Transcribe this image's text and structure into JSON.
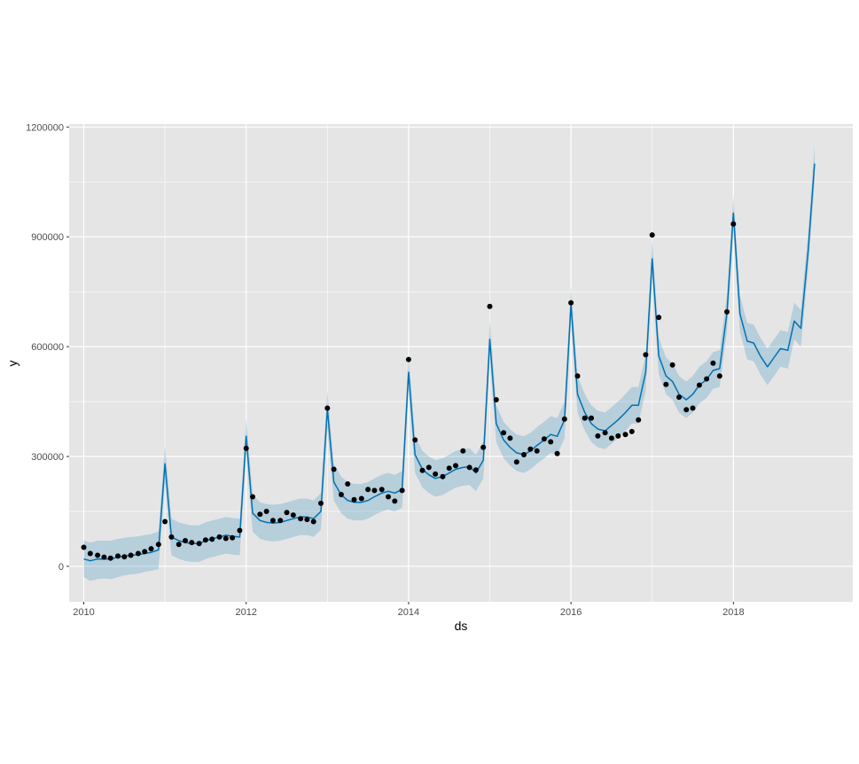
{
  "chart_data": {
    "type": "line",
    "title": "",
    "xlabel": "ds",
    "ylabel": "y",
    "xlim": [
      2009.82,
      2019.47
    ],
    "ylim": [
      -97000,
      1208000
    ],
    "x_ticks": [
      2010,
      2012,
      2014,
      2016,
      2018
    ],
    "x_tick_labels": [
      "2010",
      "2012",
      "2014",
      "2016",
      "2018"
    ],
    "y_ticks": [
      0,
      300000,
      600000,
      900000,
      1200000
    ],
    "y_tick_labels": [
      "0",
      "300000",
      "600000",
      "900000",
      "1200000"
    ],
    "grid": true,
    "legend": "none",
    "colors": {
      "panel_bg": "#e5e5e5",
      "grid": "#ffffff",
      "forecast_line": "#0072b2",
      "uncertainty_band": "#0072b2",
      "observed_points": "#000000"
    },
    "series": [
      {
        "kind": "observed_points",
        "x": [
          2010.0,
          2010.08,
          2010.17,
          2010.25,
          2010.33,
          2010.42,
          2010.5,
          2010.58,
          2010.67,
          2010.75,
          2010.83,
          2010.92,
          2011.0,
          2011.08,
          2011.17,
          2011.25,
          2011.33,
          2011.42,
          2011.5,
          2011.58,
          2011.67,
          2011.75,
          2011.83,
          2011.92,
          2012.0,
          2012.08,
          2012.17,
          2012.25,
          2012.33,
          2012.42,
          2012.5,
          2012.58,
          2012.67,
          2012.75,
          2012.83,
          2012.92,
          2013.0,
          2013.08,
          2013.17,
          2013.25,
          2013.33,
          2013.42,
          2013.5,
          2013.58,
          2013.67,
          2013.75,
          2013.83,
          2013.92,
          2014.0,
          2014.08,
          2014.17,
          2014.25,
          2014.33,
          2014.42,
          2014.5,
          2014.58,
          2014.67,
          2014.75,
          2014.83,
          2014.92,
          2015.0,
          2015.08,
          2015.17,
          2015.25,
          2015.33,
          2015.42,
          2015.5,
          2015.58,
          2015.67,
          2015.75,
          2015.83,
          2015.92,
          2016.0,
          2016.08,
          2016.17,
          2016.25,
          2016.33,
          2016.42,
          2016.5,
          2016.58,
          2016.67,
          2016.75,
          2016.83,
          2016.92,
          2017.0,
          2017.08,
          2017.17,
          2017.25,
          2017.33,
          2017.42,
          2017.5,
          2017.58,
          2017.67,
          2017.75,
          2017.83,
          2017.92,
          2018.0
        ],
        "y": [
          52000,
          35000,
          30000,
          25000,
          22000,
          28000,
          26000,
          30000,
          35000,
          40000,
          48000,
          60000,
          122000,
          80000,
          60000,
          70000,
          65000,
          62000,
          72000,
          74000,
          80000,
          76000,
          78000,
          98000,
          322000,
          190000,
          142000,
          150000,
          125000,
          125000,
          147000,
          140000,
          130000,
          128000,
          122000,
          172000,
          432000,
          265000,
          196000,
          225000,
          182000,
          185000,
          210000,
          207000,
          210000,
          190000,
          178000,
          207000,
          565000,
          345000,
          262000,
          270000,
          252000,
          245000,
          268000,
          275000,
          315000,
          270000,
          263000,
          325000,
          710000,
          455000,
          365000,
          350000,
          285000,
          305000,
          320000,
          315000,
          348000,
          340000,
          308000,
          402000,
          720000,
          520000,
          405000,
          405000,
          356000,
          365000,
          350000,
          356000,
          360000,
          368000,
          400000,
          578000,
          905000,
          680000,
          497000,
          550000,
          462000,
          428000,
          432000,
          495000,
          512000,
          555000,
          520000,
          695000,
          935000
        ]
      },
      {
        "kind": "forecast",
        "x": [
          2010.0,
          2010.08,
          2010.17,
          2010.25,
          2010.33,
          2010.42,
          2010.5,
          2010.58,
          2010.67,
          2010.75,
          2010.83,
          2010.92,
          2011.0,
          2011.08,
          2011.17,
          2011.25,
          2011.33,
          2011.42,
          2011.5,
          2011.58,
          2011.67,
          2011.75,
          2011.83,
          2011.92,
          2012.0,
          2012.08,
          2012.17,
          2012.25,
          2012.33,
          2012.42,
          2012.5,
          2012.58,
          2012.67,
          2012.75,
          2012.83,
          2012.92,
          2013.0,
          2013.08,
          2013.17,
          2013.25,
          2013.33,
          2013.42,
          2013.5,
          2013.58,
          2013.67,
          2013.75,
          2013.83,
          2013.92,
          2014.0,
          2014.08,
          2014.17,
          2014.25,
          2014.33,
          2014.42,
          2014.5,
          2014.58,
          2014.67,
          2014.75,
          2014.83,
          2014.92,
          2015.0,
          2015.08,
          2015.17,
          2015.25,
          2015.33,
          2015.42,
          2015.5,
          2015.58,
          2015.67,
          2015.75,
          2015.83,
          2015.92,
          2016.0,
          2016.08,
          2016.17,
          2016.25,
          2016.33,
          2016.42,
          2016.5,
          2016.58,
          2016.67,
          2016.75,
          2016.83,
          2016.92,
          2017.0,
          2017.08,
          2017.17,
          2017.25,
          2017.33,
          2017.42,
          2017.5,
          2017.58,
          2017.67,
          2017.75,
          2017.83,
          2017.92,
          2018.0,
          2018.08,
          2018.17,
          2018.25,
          2018.33,
          2018.42,
          2018.5,
          2018.58,
          2018.67,
          2018.75,
          2018.83,
          2018.92,
          2019.0
        ],
        "y": [
          20000,
          15000,
          20000,
          20000,
          20000,
          25000,
          28000,
          30000,
          32000,
          35000,
          38000,
          45000,
          280000,
          80000,
          70000,
          65000,
          62000,
          62000,
          70000,
          75000,
          80000,
          85000,
          82000,
          80000,
          355000,
          145000,
          125000,
          120000,
          118000,
          120000,
          125000,
          130000,
          135000,
          135000,
          130000,
          150000,
          430000,
          230000,
          195000,
          180000,
          175000,
          175000,
          180000,
          190000,
          200000,
          205000,
          200000,
          210000,
          530000,
          305000,
          265000,
          250000,
          240000,
          245000,
          255000,
          265000,
          270000,
          272000,
          255000,
          290000,
          620000,
          390000,
          345000,
          325000,
          310000,
          305000,
          315000,
          330000,
          345000,
          360000,
          355000,
          400000,
          715000,
          470000,
          420000,
          390000,
          375000,
          370000,
          385000,
          400000,
          420000,
          440000,
          440000,
          530000,
          840000,
          575000,
          520000,
          505000,
          470000,
          455000,
          470000,
          495000,
          510000,
          535000,
          540000,
          690000,
          965000,
          690000,
          615000,
          610000,
          575000,
          545000,
          570000,
          595000,
          590000,
          670000,
          650000,
          860000,
          1100000
        ]
      },
      {
        "kind": "uncertainty_band",
        "x": [
          2010.0,
          2010.08,
          2010.17,
          2010.25,
          2010.33,
          2010.42,
          2010.5,
          2010.58,
          2010.67,
          2010.75,
          2010.83,
          2010.92,
          2011.0,
          2011.08,
          2011.17,
          2011.25,
          2011.33,
          2011.42,
          2011.5,
          2011.58,
          2011.67,
          2011.75,
          2011.83,
          2011.92,
          2012.0,
          2012.08,
          2012.17,
          2012.25,
          2012.33,
          2012.42,
          2012.5,
          2012.58,
          2012.67,
          2012.75,
          2012.83,
          2012.92,
          2013.0,
          2013.08,
          2013.17,
          2013.25,
          2013.33,
          2013.42,
          2013.5,
          2013.58,
          2013.67,
          2013.75,
          2013.83,
          2013.92,
          2014.0,
          2014.08,
          2014.17,
          2014.25,
          2014.33,
          2014.42,
          2014.5,
          2014.58,
          2014.67,
          2014.75,
          2014.83,
          2014.92,
          2015.0,
          2015.08,
          2015.17,
          2015.25,
          2015.33,
          2015.42,
          2015.5,
          2015.58,
          2015.67,
          2015.75,
          2015.83,
          2015.92,
          2016.0,
          2016.08,
          2016.17,
          2016.25,
          2016.33,
          2016.42,
          2016.5,
          2016.58,
          2016.67,
          2016.75,
          2016.83,
          2016.92,
          2017.0,
          2017.08,
          2017.17,
          2017.25,
          2017.33,
          2017.42,
          2017.5,
          2017.58,
          2017.67,
          2017.75,
          2017.83,
          2017.92,
          2018.0,
          2018.08,
          2018.17,
          2018.25,
          2018.33,
          2018.42,
          2018.5,
          2018.58,
          2018.67,
          2018.75,
          2018.83,
          2018.92,
          2019.0
        ],
        "lower": [
          -30000,
          -40000,
          -35000,
          -33000,
          -35000,
          -30000,
          -25000,
          -22000,
          -20000,
          -15000,
          -12000,
          -8000,
          230000,
          30000,
          20000,
          15000,
          12000,
          12000,
          20000,
          25000,
          30000,
          35000,
          32000,
          30000,
          305000,
          95000,
          75000,
          70000,
          68000,
          70000,
          75000,
          80000,
          85000,
          85000,
          80000,
          100000,
          380000,
          180000,
          145000,
          130000,
          125000,
          125000,
          130000,
          140000,
          150000,
          155000,
          150000,
          160000,
          480000,
          255000,
          215000,
          200000,
          190000,
          195000,
          205000,
          215000,
          220000,
          222000,
          205000,
          240000,
          570000,
          340000,
          295000,
          275000,
          260000,
          255000,
          265000,
          280000,
          295000,
          310000,
          305000,
          350000,
          665000,
          420000,
          370000,
          340000,
          325000,
          320000,
          335000,
          350000,
          370000,
          390000,
          390000,
          480000,
          790000,
          525000,
          470000,
          455000,
          420000,
          405000,
          420000,
          445000,
          460000,
          485000,
          490000,
          640000,
          915000,
          640000,
          565000,
          560000,
          525000,
          495000,
          520000,
          545000,
          540000,
          620000,
          600000,
          810000,
          1050000
        ],
        "upper": [
          70000,
          65000,
          70000,
          70000,
          70000,
          75000,
          78000,
          80000,
          82000,
          85000,
          88000,
          95000,
          330000,
          130000,
          120000,
          115000,
          112000,
          112000,
          120000,
          125000,
          130000,
          135000,
          132000,
          130000,
          405000,
          195000,
          175000,
          170000,
          168000,
          170000,
          175000,
          180000,
          185000,
          185000,
          180000,
          200000,
          480000,
          280000,
          245000,
          230000,
          225000,
          225000,
          230000,
          240000,
          250000,
          255000,
          250000,
          260000,
          580000,
          355000,
          315000,
          300000,
          290000,
          295000,
          305000,
          315000,
          320000,
          322000,
          305000,
          340000,
          670000,
          440000,
          395000,
          375000,
          360000,
          355000,
          365000,
          380000,
          395000,
          410000,
          405000,
          450000,
          765000,
          520000,
          470000,
          440000,
          425000,
          420000,
          435000,
          450000,
          470000,
          490000,
          490000,
          580000,
          890000,
          625000,
          570000,
          555000,
          520000,
          505000,
          520000,
          545000,
          560000,
          585000,
          590000,
          740000,
          1015000,
          740000,
          665000,
          660000,
          625000,
          595000,
          620000,
          645000,
          640000,
          720000,
          700000,
          910000,
          1150000
        ]
      }
    ]
  }
}
